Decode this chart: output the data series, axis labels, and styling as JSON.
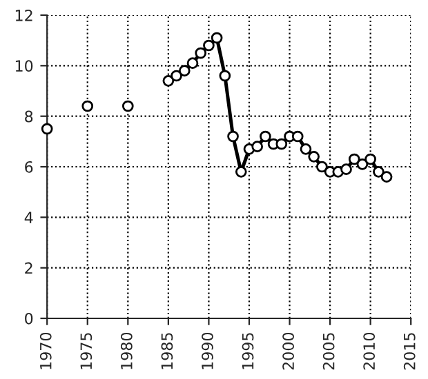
{
  "chart_data": {
    "type": "line",
    "xlim": [
      1970,
      2015
    ],
    "xticks": [
      1970,
      1975,
      1980,
      1985,
      1990,
      1995,
      2000,
      2005,
      2010,
      2015
    ],
    "ylim": [
      0,
      12
    ],
    "yticks": [
      0,
      2,
      4,
      6,
      8,
      10,
      12
    ],
    "grid": true,
    "marker": "circle",
    "series": [
      {
        "type": "scatter",
        "color": "#000000",
        "x": [
          1970,
          1975,
          1980
        ],
        "values": [
          7.5,
          8.4,
          8.4
        ]
      },
      {
        "color": "#000000",
        "x": [
          1985,
          1986,
          1987,
          1988,
          1989,
          1990,
          1991,
          1992,
          1993,
          1994,
          1995,
          1996,
          1997,
          1998,
          1999,
          2000,
          2001,
          2002,
          2003,
          2004,
          2005,
          2006,
          2007,
          2008,
          2009,
          2010,
          2011,
          2012
        ],
        "values": [
          9.4,
          9.6,
          9.8,
          10.1,
          10.5,
          10.8,
          11.1,
          9.6,
          7.2,
          5.8,
          6.7,
          6.8,
          7.2,
          6.9,
          6.9,
          7.2,
          7.2,
          6.7,
          6.4,
          6.0,
          5.8,
          5.8,
          5.9,
          6.3,
          6.1,
          6.3,
          5.8,
          5.6
        ]
      }
    ]
  }
}
